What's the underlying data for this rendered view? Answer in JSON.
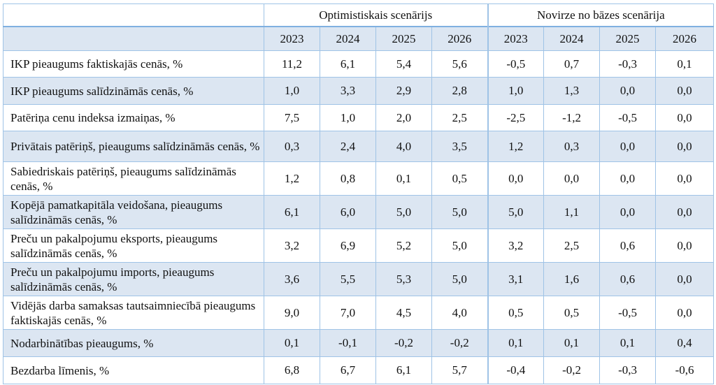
{
  "header": {
    "group_optimistic": "Optimistiskais scenārijs",
    "group_deviation": "Novirze no bāzes scenārija",
    "years": [
      "2023",
      "2024",
      "2025",
      "2026",
      "2023",
      "2024",
      "2025",
      "2026"
    ]
  },
  "rows": [
    {
      "label": "IKP pieaugums faktiskajās cenās, %",
      "values": [
        "11,2",
        "6,1",
        "5,4",
        "5,6",
        "-0,5",
        "0,7",
        "-0,3",
        "0,1"
      ]
    },
    {
      "label": "IKP pieaugums salīdzināmās cenās, %",
      "values": [
        "1,0",
        "3,3",
        "2,9",
        "2,8",
        "1,0",
        "1,3",
        "0,0",
        "0,0"
      ]
    },
    {
      "label": "Patēriņa cenu indeksa izmaiņas, %",
      "values": [
        "7,5",
        "1,0",
        "2,0",
        "2,5",
        "-2,5",
        "-1,2",
        "-0,5",
        "0,0"
      ]
    },
    {
      "label": "Privātais patēriņš, pieaugums salīdzināmās cenās, %",
      "values": [
        "0,3",
        "2,4",
        "4,0",
        "3,5",
        "1,2",
        "0,3",
        "0,0",
        "0,0"
      ]
    },
    {
      "label": "Sabiedriskais patēriņš, pieaugums salīdzināmās cenās, %",
      "values": [
        "1,2",
        "0,8",
        "0,1",
        "0,5",
        "0,0",
        "0,0",
        "0,0",
        "0,0"
      ]
    },
    {
      "label": "Kopējā pamatkapitāla veidošana, pieaugums salīdzināmās cenās, %",
      "values": [
        "6,1",
        "6,0",
        "5,0",
        "5,0",
        "5,0",
        "1,1",
        "0,0",
        "0,0"
      ]
    },
    {
      "label": "Preču un pakalpojumu eksports, pieaugums salīdzināmās cenās, %",
      "values": [
        "3,2",
        "6,9",
        "5,2",
        "5,0",
        "3,2",
        "2,5",
        "0,6",
        "0,0"
      ]
    },
    {
      "label": "Preču un pakalpojumu imports, pieaugums salīdzināmās cenās, %",
      "values": [
        "3,6",
        "5,5",
        "5,3",
        "5,0",
        "3,1",
        "1,6",
        "0,6",
        "0,0"
      ]
    },
    {
      "label": "Vidējās darba samaksas tautsaimniecībā pieaugums faktiskajās cenās, %",
      "values": [
        "9,0",
        "7,0",
        "4,5",
        "4,0",
        "0,5",
        "0,5",
        "-0,5",
        "0,0"
      ]
    },
    {
      "label": "Nodarbinātības pieaugums, %",
      "values": [
        "0,1",
        "-0,1",
        "-0,2",
        "-0,2",
        "0,1",
        "0,1",
        "0,1",
        "0,4"
      ]
    },
    {
      "label": "Bezdarba līmenis, %",
      "values": [
        "6,8",
        "6,7",
        "6,1",
        "5,7",
        "-0,4",
        "-0,2",
        "-0,3",
        "-0,6"
      ]
    }
  ]
}
